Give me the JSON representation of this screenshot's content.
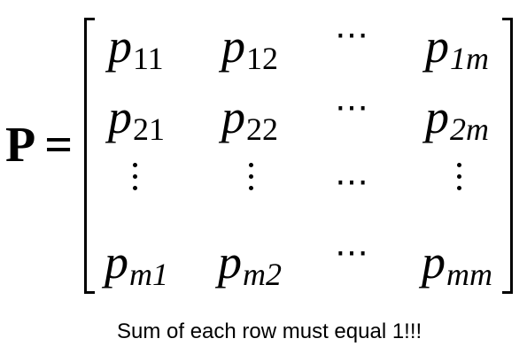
{
  "equation": {
    "symbol": "P",
    "equals": "=",
    "base": "p",
    "rows": [
      [
        "11",
        "12",
        "⋯",
        "1m"
      ],
      [
        "21",
        "22",
        "⋯",
        "2m"
      ],
      [
        "⋮",
        "⋮",
        "⋯",
        "⋮"
      ],
      [
        "m1",
        "m2",
        "⋯",
        "mm"
      ]
    ]
  },
  "note": "Sum of each row must equal 1!!!"
}
